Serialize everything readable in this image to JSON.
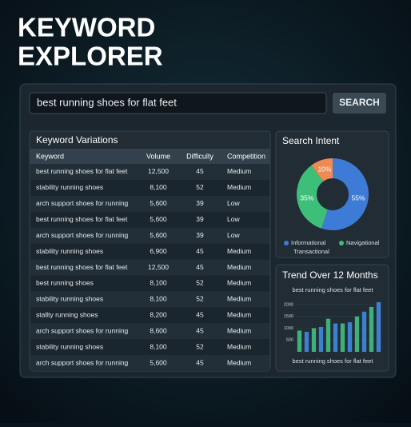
{
  "header": {
    "title_lines": [
      "KEYWORD",
      "EXPLORER"
    ]
  },
  "search": {
    "query": "best running shoes for flat feet",
    "button": "SEARCH"
  },
  "keyword_table": {
    "title": "Keyword Variations",
    "columns": [
      "Keyword",
      "Volume",
      "Difficulty",
      "Competition"
    ],
    "rows": [
      [
        "best running shoes for flat feet",
        "12,500",
        "45",
        "Medium"
      ],
      [
        "stability running shoes",
        "8,100",
        "52",
        "Medium"
      ],
      [
        "arch support shoes for running",
        "5,600",
        "39",
        "Low"
      ],
      [
        "best running shoes for flat feet",
        "5,600",
        "39",
        "Low"
      ],
      [
        "arch support shoes for running",
        "5,600",
        "39",
        "Low"
      ],
      [
        "stability running shoes",
        "6,900",
        "45",
        "Medium"
      ],
      [
        "best running shoes for flat feet",
        "12,500",
        "45",
        "Medium"
      ],
      [
        "best running shoes",
        "8,100",
        "52",
        "Medium"
      ],
      [
        "stability running shoes",
        "8,100",
        "52",
        "Medium"
      ],
      [
        "stallty running shoes",
        "8,200",
        "45",
        "Medium"
      ],
      [
        "arch support shoes for running",
        "8,600",
        "45",
        "Medium"
      ],
      [
        "stability running shoes",
        "8,100",
        "52",
        "Medium"
      ],
      [
        "arch support shoes for running",
        "5,600",
        "45",
        "Medium"
      ]
    ]
  },
  "intent_chart": {
    "type": "pie",
    "title": "Search Intent",
    "categories": [
      "Informational",
      "Navigational",
      "Transactional"
    ],
    "values": [
      55,
      35,
      10
    ],
    "value_labels": [
      "55%",
      "35%",
      "10%"
    ],
    "colors": [
      "#3d7bd6",
      "#3dbf7a",
      "#ee8a52"
    ]
  },
  "trend_chart": {
    "type": "bar",
    "title": "Trend Over 12 Months",
    "subtitle": "best running shoes for flat feet",
    "caption": "best running shoes for flat feet",
    "values": [
      900,
      850,
      1000,
      1050,
      1400,
      1200,
      1200,
      1250,
      1500,
      1700,
      1900,
      2100
    ],
    "color": "#3fb07a",
    "ylim": [
      0,
      2300
    ],
    "yticks": [
      500,
      1000,
      1500,
      2000
    ]
  }
}
